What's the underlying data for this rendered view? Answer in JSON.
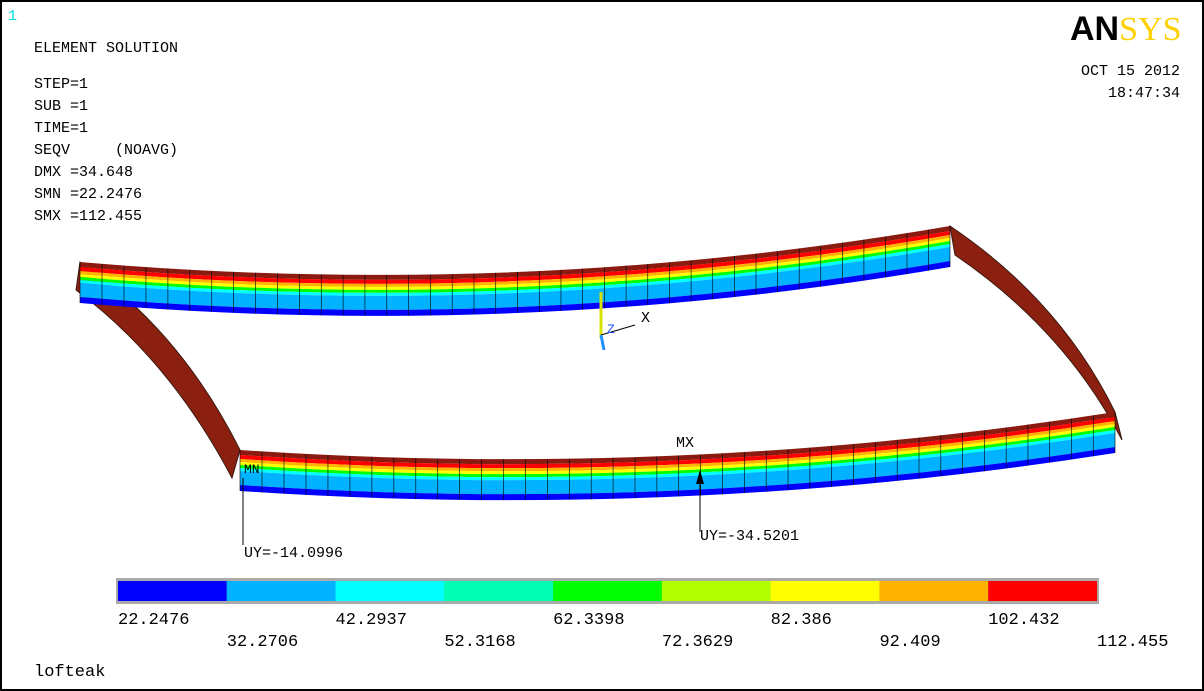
{
  "window_number": "1",
  "header": {
    "title": "ELEMENT SOLUTION",
    "lines": [
      "STEP=1",
      "SUB =1",
      "TIME=1",
      "SEQV     (NOAVG)",
      "DMX =34.648",
      "SMN =22.2476",
      "SMX =112.455"
    ]
  },
  "logo": {
    "left": "AN",
    "right": "SYS"
  },
  "date": "OCT 15 2012",
  "time": "18:47:34",
  "triad": {
    "x": "X",
    "z": "Z"
  },
  "annotations": {
    "max": "MX",
    "min": "MN",
    "uy_min": "UY=-14.0996",
    "uy_max": "UY=-34.5201"
  },
  "legend": {
    "colors": [
      "#0000ff",
      "#00b2ff",
      "#00ffff",
      "#00ffb2",
      "#00ff00",
      "#b2ff00",
      "#ffff00",
      "#ffb200",
      "#ff0000"
    ],
    "labels": [
      "22.2476",
      "32.2706",
      "42.2937",
      "52.3168",
      "62.3398",
      "72.3629",
      "82.386",
      "92.409",
      "102.432",
      "112.455"
    ]
  },
  "caption": "lofteak"
}
